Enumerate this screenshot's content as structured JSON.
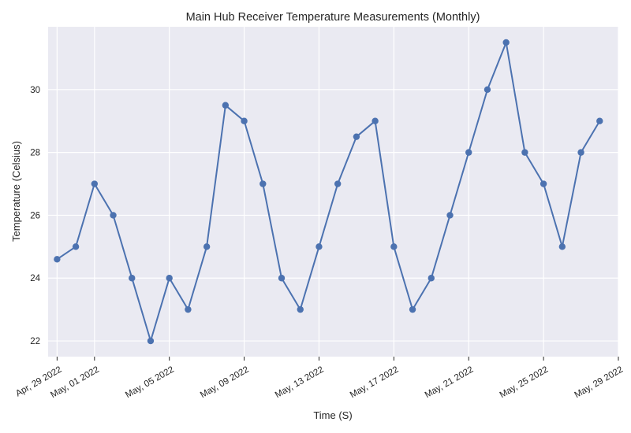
{
  "chart_data": {
    "type": "line",
    "title": "Main Hub Receiver Temperature Measurements (Monthly)",
    "xlabel": "Time (S)",
    "ylabel": "Temperature (Celsius)",
    "x_tick_labels": [
      "Apr, 29 2022",
      "May, 01 2022",
      "May, 05 2022",
      "May, 09 2022",
      "May, 13 2022",
      "May, 17 2022",
      "May, 21 2022",
      "May, 25 2022",
      "May, 29 2022"
    ],
    "x_ticks": [
      "2022-04-29",
      "2022-05-01",
      "2022-05-05",
      "2022-05-09",
      "2022-05-13",
      "2022-05-17",
      "2022-05-21",
      "2022-05-25",
      "2022-05-29"
    ],
    "y_ticks": [
      22,
      24,
      26,
      28,
      30
    ],
    "xlim": [
      "2022-04-28T12:30",
      "2022-05-29T00:00"
    ],
    "ylim": [
      21.5,
      32.0
    ],
    "grid": true,
    "background_color": "#eaeaf2",
    "line_color": "#4c72b0",
    "series": [
      {
        "x": [
          "2022-04-29",
          "2022-04-30",
          "2022-05-01",
          "2022-05-02",
          "2022-05-03",
          "2022-05-04",
          "2022-05-05",
          "2022-05-06",
          "2022-05-07",
          "2022-05-08",
          "2022-05-09",
          "2022-05-10",
          "2022-05-11",
          "2022-05-12",
          "2022-05-13",
          "2022-05-14",
          "2022-05-15",
          "2022-05-16",
          "2022-05-17",
          "2022-05-18",
          "2022-05-19",
          "2022-05-20",
          "2022-05-21",
          "2022-05-22",
          "2022-05-23",
          "2022-05-24",
          "2022-05-25",
          "2022-05-26",
          "2022-05-27",
          "2022-05-28"
        ],
        "values": [
          24.6,
          25,
          27,
          26,
          24,
          22,
          24,
          23,
          25,
          29.5,
          29,
          27,
          24,
          23,
          25,
          27,
          28.5,
          29,
          25,
          23,
          24,
          26,
          28,
          30,
          31.5,
          28,
          27,
          25,
          28,
          29
        ]
      }
    ]
  }
}
